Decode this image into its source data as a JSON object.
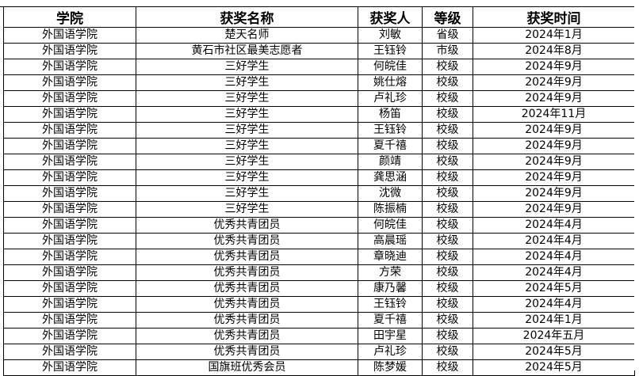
{
  "headers": [
    "学院",
    "获奖名称",
    "获奖人",
    "等级",
    "获奖时间"
  ],
  "rows": [
    [
      "外国语学院",
      "楚天名师",
      "刘敏",
      "省级",
      "2024年1月"
    ],
    [
      "外国语学院",
      "黄石市社区最美志愿者",
      "王钰铃",
      "市级",
      "2024年8月"
    ],
    [
      "外国语学院",
      "三好学生",
      "何皖佳",
      "校级",
      "2024年9月"
    ],
    [
      "外国语学院",
      "三好学生",
      "姚仕熔",
      "校级",
      "2024年9月"
    ],
    [
      "外国语学院",
      "三好学生",
      "卢礼珍",
      "校级",
      "2024年9月"
    ],
    [
      "外国语学院",
      "三好学生",
      "杨笛",
      "校级",
      "2024年11月"
    ],
    [
      "外国语学院",
      "三好学生",
      "王钰铃",
      "校级",
      "2024年9月"
    ],
    [
      "外国语学院",
      "三好学生",
      "夏千禧",
      "校级",
      "2024年9月"
    ],
    [
      "外国语学院",
      "三好学生",
      "颜靖",
      "校级",
      "2024年9月"
    ],
    [
      "外国语学院",
      "三好学生",
      "龚思涵",
      "校级",
      "2024年9月"
    ],
    [
      "外国语学院",
      "三好学生",
      "沈微",
      "校级",
      "2024年9月"
    ],
    [
      "外国语学院",
      "三好学生",
      "陈振楠",
      "校级",
      "2024年9月"
    ],
    [
      "外国语学院",
      "优秀共青团员",
      "何皖佳",
      "校级",
      "2024年4月"
    ],
    [
      "外国语学院",
      "优秀共青团员",
      "高晨瑶",
      "校级",
      "2024年4月"
    ],
    [
      "外国语学院",
      "优秀共青团员",
      "章晓迪",
      "校级",
      "2024年4月"
    ],
    [
      "外国语学院",
      "优秀共青团员",
      "方荣",
      "校级",
      "2024年4月"
    ],
    [
      "外国语学院",
      "优秀共青团员",
      "康乃馨",
      "校级",
      "2024年5月"
    ],
    [
      "外国语学院",
      "优秀共青团员",
      "王钰铃",
      "校级",
      "2024年4月"
    ],
    [
      "外国语学院",
      "优秀共青团员",
      "夏千禧",
      "校级",
      "2024年1月"
    ],
    [
      "外国语学院",
      "优秀共青团员",
      "田宇星",
      "校级",
      "2024年五月"
    ],
    [
      "外国语学院",
      "优秀共青团员",
      "卢礼珍",
      "校级",
      "2024年5月"
    ],
    [
      "外国语学院",
      "国旗班优秀会员",
      "陈梦媛",
      "校级",
      "2024年5月"
    ]
  ]
}
